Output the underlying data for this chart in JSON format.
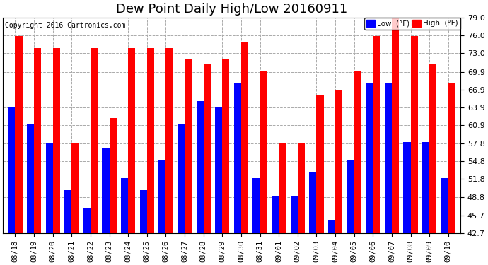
{
  "title": "Dew Point Daily High/Low 20160911",
  "copyright": "Copyright 2016 Cartronics.com",
  "dates": [
    "08/18",
    "08/19",
    "08/20",
    "08/21",
    "08/22",
    "08/23",
    "08/24",
    "08/25",
    "08/26",
    "08/27",
    "08/28",
    "08/29",
    "08/30",
    "08/31",
    "09/01",
    "09/02",
    "09/03",
    "09/04",
    "09/05",
    "09/06",
    "09/07",
    "09/08",
    "09/09",
    "09/10"
  ],
  "high": [
    75.9,
    73.9,
    73.9,
    57.9,
    73.9,
    62.1,
    73.9,
    73.9,
    73.9,
    72.0,
    71.1,
    72.0,
    75.0,
    70.0,
    57.9,
    57.9,
    66.0,
    66.9,
    70.0,
    75.9,
    79.0,
    75.9,
    71.1,
    68.0
  ],
  "low": [
    64.0,
    61.0,
    57.9,
    50.0,
    46.9,
    57.0,
    52.0,
    49.9,
    55.0,
    61.0,
    65.0,
    64.0,
    67.9,
    52.0,
    49.0,
    49.0,
    53.1,
    45.0,
    55.0,
    67.9,
    67.9,
    58.0,
    58.0,
    52.0
  ],
  "high_color": "#ff0000",
  "low_color": "#0000ff",
  "background_color": "#ffffff",
  "grid_color": "#aaaaaa",
  "ymin": 42.7,
  "ymax": 79.0,
  "yticks": [
    42.7,
    45.7,
    48.8,
    51.8,
    54.8,
    57.8,
    60.9,
    63.9,
    66.9,
    69.9,
    73.0,
    76.0,
    79.0
  ],
  "title_fontsize": 13,
  "tick_fontsize": 8,
  "xtick_fontsize": 7.5,
  "legend_low_label": "Low  (°F)",
  "legend_high_label": "High  (°F)"
}
